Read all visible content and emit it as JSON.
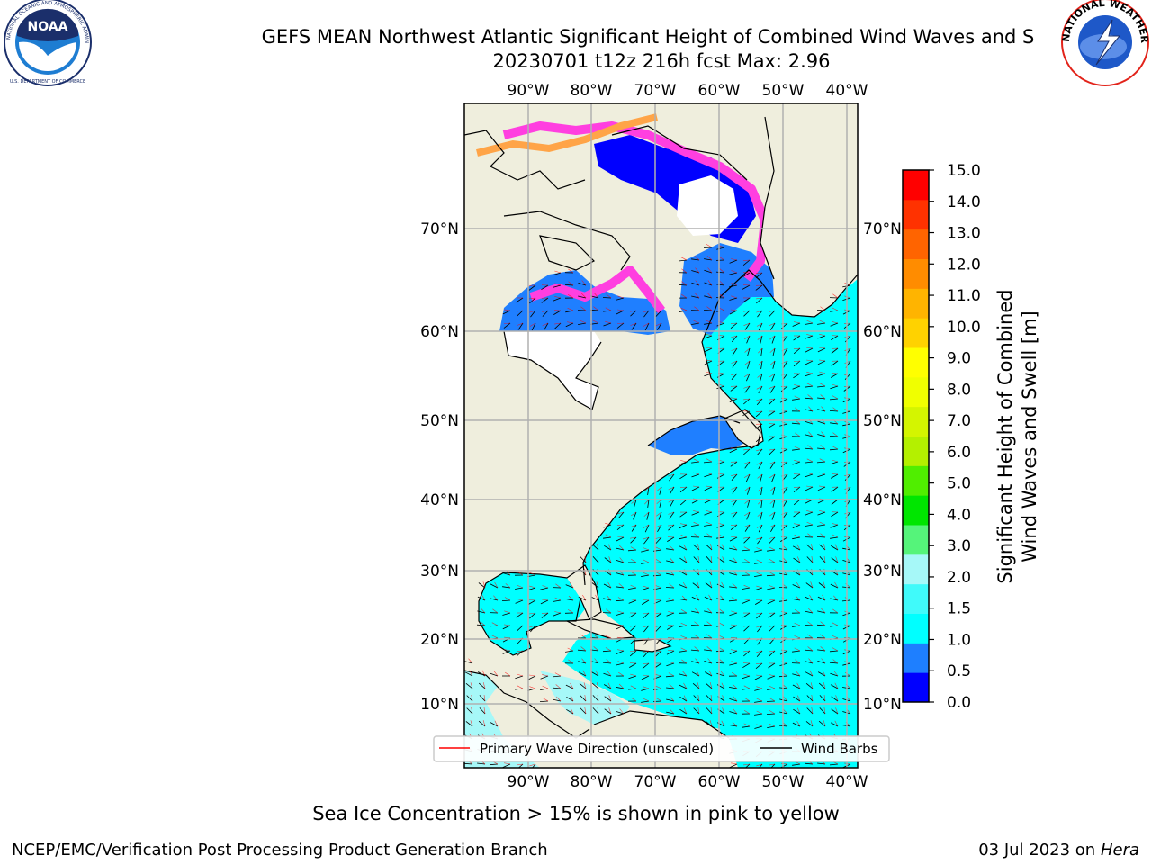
{
  "header": {
    "title_line1": "GEFS MEAN Northwest Atlantic Significant Height of Combined Wind Waves and S",
    "title_line2": "20230701 t12z 216h fcst   Max: 2.96"
  },
  "logos": {
    "left": {
      "icon": "noaa-logo",
      "text": "NOAA",
      "ring_text": "NATIONAL OCEANIC AND ATMOSPHERIC ADMINISTRATION",
      "bottom_text": "U.S. DEPARTMENT OF COMMERCE",
      "colors": {
        "dark": "#1b2f6b",
        "sky": "#1e7dd2"
      }
    },
    "right": {
      "icon": "nws-logo",
      "ring_text": "NATIONAL WEATHER SERVICE",
      "colors": {
        "ring": "#e2231a",
        "inner": "#1e58c8"
      }
    }
  },
  "map": {
    "lon_labels": [
      "90°W",
      "80°W",
      "70°W",
      "60°W",
      "50°W",
      "40°W"
    ],
    "lat_labels": [
      "70°N",
      "60°N",
      "50°N",
      "40°N",
      "30°N",
      "20°N",
      "10°N"
    ],
    "colors": {
      "land": "#efeedd",
      "ocean": "#00ffff",
      "ocean_light": "#a6f8f8",
      "shallow": "#1f7fff",
      "deep": "#0000ff",
      "ice_pink": "#ff3fe0",
      "ice_orange": "#ffa447",
      "grid": "#b0b0b0",
      "wave_dir": "#ff0000",
      "barb": "#000000"
    }
  },
  "legend": {
    "wave_direction_label": "Primary Wave Direction (unscaled)",
    "wind_barbs_label": "Wind Barbs"
  },
  "colorbar": {
    "label_line1": "Significant Height of Combined",
    "label_line2": "Wind Waves and Swell [m]",
    "ticks": [
      "15.0",
      "14.0",
      "13.0",
      "12.0",
      "11.0",
      "10.0",
      "9.0",
      "8.0",
      "7.0",
      "6.0",
      "5.0",
      "4.0",
      "3.0",
      "2.0",
      "1.5",
      "1.0",
      "0.5",
      "0.0"
    ],
    "colors": [
      "#0000ff",
      "#1e7fff",
      "#00ffff",
      "#40fafa",
      "#a6f8f8",
      "#55f47a",
      "#00e600",
      "#50ee00",
      "#b4f000",
      "#d4f500",
      "#f0ff00",
      "#ffff00",
      "#ffd200",
      "#ffb400",
      "#ff8c00",
      "#ff6400",
      "#ff3200",
      "#ff0000"
    ]
  },
  "footer": {
    "sea_ice_note": "Sea Ice Concentration > 15% is shown in pink to yellow",
    "producer": "NCEP/EMC/Verification Post Processing Product Generation Branch",
    "date_prefix": "03 Jul 2023 on ",
    "machine": "Hera"
  }
}
